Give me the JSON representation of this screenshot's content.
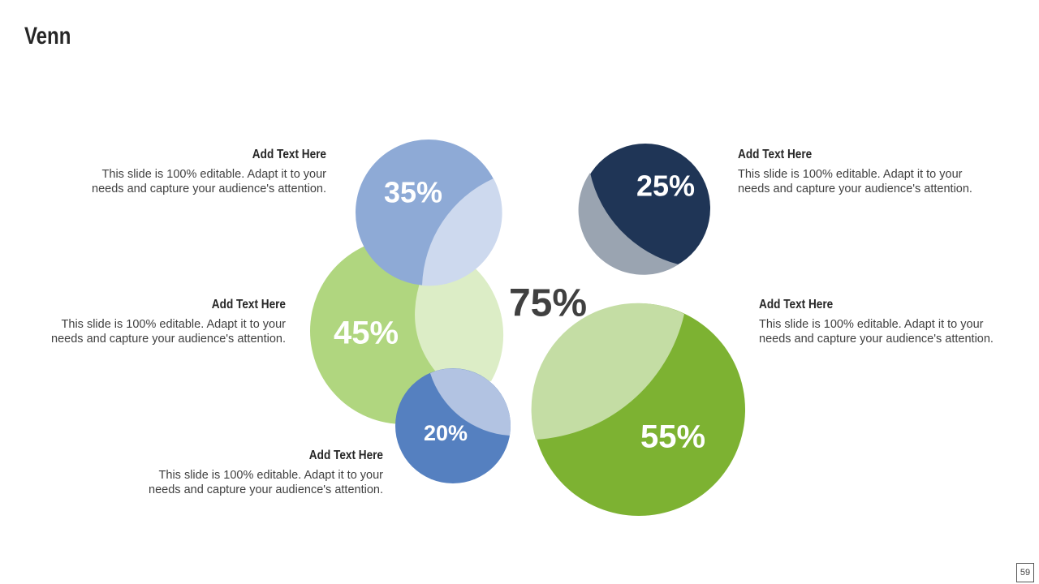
{
  "title": "Venn",
  "center_label": "75%",
  "circles": [
    {
      "label": "35%"
    },
    {
      "label": "45%"
    },
    {
      "label": "20%"
    },
    {
      "label": "25%"
    },
    {
      "label": "55%"
    }
  ],
  "text_blocks": [
    {
      "heading": "Add Text Here",
      "body": "This slide is 100% editable. Adapt it to your needs and capture your audience's attention."
    },
    {
      "heading": "Add Text Here",
      "body": "This slide is 100% editable. Adapt it to your needs and capture your audience's attention."
    },
    {
      "heading": "Add Text Here",
      "body": "This slide is 100% editable. Adapt it to your needs and capture your audience's attention."
    },
    {
      "heading": "Add Text Here",
      "body": "This slide is 100% editable. Adapt it to your needs and capture your audience's attention."
    },
    {
      "heading": "Add Text Here",
      "body": "This slide is 100% editable. Adapt it to your needs and capture your audience's attention."
    }
  ],
  "page_number": "59"
}
